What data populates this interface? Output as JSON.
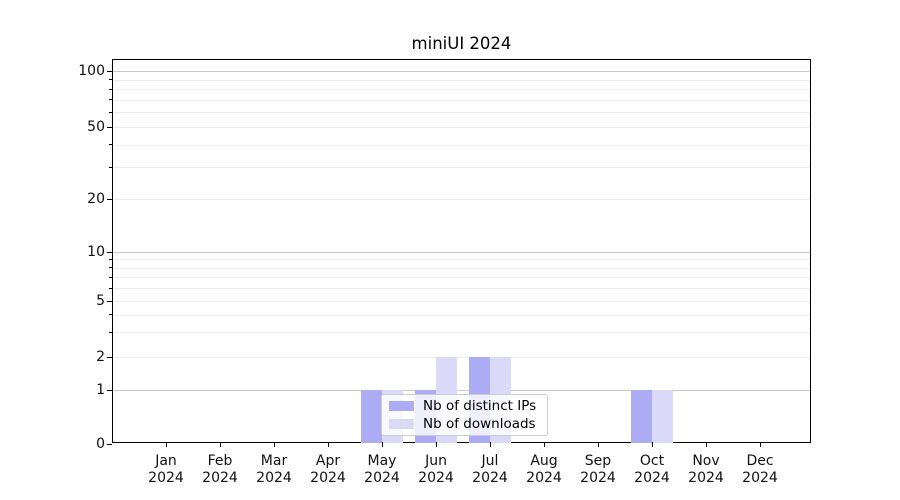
{
  "title": "miniUI 2024",
  "legend": {
    "items": [
      {
        "label": "Nb of distinct IPs",
        "color": "#abacf3"
      },
      {
        "label": "Nb of downloads",
        "color": "#dadaf8"
      }
    ]
  },
  "chart_data": {
    "type": "bar",
    "title": "miniUI 2024",
    "categories": [
      "Jan",
      "Feb",
      "Mar",
      "Apr",
      "May",
      "Jun",
      "Jul",
      "Aug",
      "Sep",
      "Oct",
      "Nov",
      "Dec"
    ],
    "year_label": "2024",
    "series": [
      {
        "name": "Nb of distinct IPs",
        "color": "#abacf3",
        "values": [
          0,
          0,
          0,
          0,
          1,
          1,
          2,
          0,
          0,
          1,
          0,
          0
        ]
      },
      {
        "name": "Nb of downloads",
        "color": "#dadaf8",
        "values": [
          0,
          0,
          0,
          0,
          1,
          2,
          2,
          0,
          0,
          1,
          0,
          0
        ]
      }
    ],
    "yscale": "symlog",
    "ylim": [
      0,
      120
    ],
    "ytick_labels": [
      0,
      1,
      2,
      5,
      10,
      20,
      50,
      100
    ],
    "grid_major": [
      1,
      10,
      100
    ],
    "grid_minor": [
      2,
      3,
      4,
      5,
      6,
      7,
      8,
      9,
      20,
      30,
      40,
      50,
      60,
      70,
      80,
      90
    ],
    "grid": "both",
    "legend_position": "lower center",
    "xlabel": "",
    "ylabel": ""
  }
}
